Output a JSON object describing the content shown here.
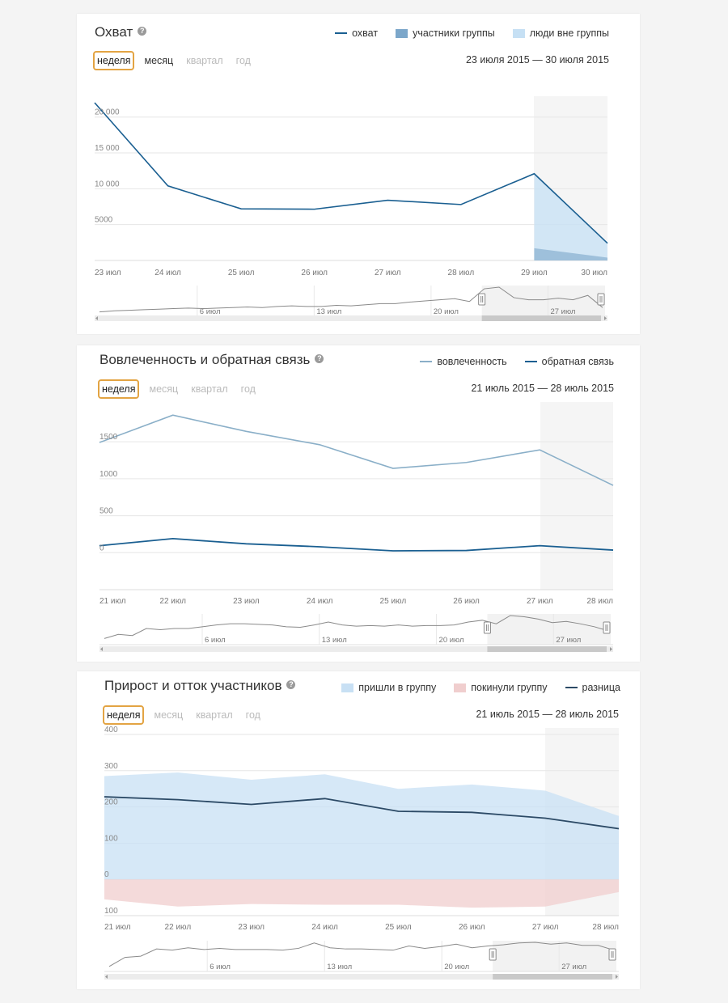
{
  "colors": {
    "reach": "#1a5f91",
    "members": "#7ca7ca",
    "nonmembers": "#c6e0f4",
    "engagement": "#8aafc8",
    "feedback": "#1a5f91",
    "joined": "#c8e0f4",
    "left": "#f0cece",
    "diff": "#2c4a66",
    "selected_border": "#e3a443"
  },
  "chart_data": [
    {
      "type": "line",
      "title": "Охват",
      "help": "?",
      "legend": [
        {
          "label": "охват",
          "kind": "line",
          "color_key": "reach"
        },
        {
          "label": "участники группы",
          "kind": "square",
          "color_key": "members"
        },
        {
          "label": "люди вне группы",
          "kind": "square",
          "color_key": "nonmembers"
        }
      ],
      "periods": [
        {
          "label": "неделя",
          "state": "selected"
        },
        {
          "label": "месяц",
          "state": "enabled"
        },
        {
          "label": "квартал",
          "state": "disabled"
        },
        {
          "label": "год",
          "state": "disabled"
        }
      ],
      "date_range": "23 июля 2015 — 30 июля 2015",
      "categories": [
        "23 июл",
        "24 июл",
        "25 июл",
        "26 июл",
        "27 июл",
        "28 июл",
        "29 июл",
        "30 июл"
      ],
      "series": [
        {
          "name": "охват",
          "values": [
            22000,
            10400,
            7200,
            7150,
            8400,
            7800,
            12100,
            2400
          ]
        }
      ],
      "partial_members": [
        1700,
        400
      ],
      "yticks": [
        5000,
        10000,
        15000,
        20000
      ],
      "ytick_labels": [
        "5000",
        "10 000",
        "15 000",
        "20 000"
      ],
      "ylim": [
        0,
        22000
      ],
      "navigator": {
        "labels": [
          "6 июл",
          "13 июл",
          "20 июл",
          "27 июл"
        ],
        "values": [
          2,
          4,
          5,
          6,
          7,
          8,
          9,
          8,
          9,
          10,
          11,
          10,
          12,
          13,
          12,
          12,
          14,
          13,
          15,
          17,
          17,
          20,
          22,
          24,
          26,
          21,
          44,
          47,
          28,
          24,
          24,
          27,
          24,
          32,
          10
        ]
      }
    },
    {
      "type": "line",
      "title": "Вовлеченность и обратная связь",
      "help": "?",
      "legend": [
        {
          "label": "вовлеченность",
          "kind": "line",
          "color_key": "engagement"
        },
        {
          "label": "обратная связь",
          "kind": "line",
          "color_key": "feedback"
        }
      ],
      "periods": [
        {
          "label": "неделя",
          "state": "selected"
        },
        {
          "label": "месяц",
          "state": "disabled"
        },
        {
          "label": "квартал",
          "state": "disabled"
        },
        {
          "label": "год",
          "state": "disabled"
        }
      ],
      "date_range": "21 июль 2015 — 28 июль 2015",
      "categories": [
        "21 июл",
        "22 июл",
        "23 июл",
        "24 июл",
        "25 июл",
        "26 июл",
        "27 июл",
        "28 июл"
      ],
      "series": [
        {
          "name": "вовлеченность",
          "values": [
            1490,
            1860,
            1640,
            1460,
            1140,
            1220,
            1390,
            910
          ]
        },
        {
          "name": "обратная связь",
          "values": [
            95,
            190,
            120,
            80,
            25,
            30,
            95,
            35
          ]
        }
      ],
      "yticks": [
        0,
        500,
        1000,
        1500
      ],
      "ytick_labels": [
        "0",
        "500",
        "1000",
        "1500"
      ],
      "ylim": [
        -500,
        1950
      ],
      "navigator": {
        "labels": [
          "6 июл",
          "13 июл",
          "20 июл",
          "27 июл"
        ],
        "values": [
          5,
          12,
          10,
          22,
          20,
          22,
          22,
          25,
          28,
          30,
          30,
          29,
          28,
          25,
          24,
          28,
          33,
          28,
          26,
          27,
          26,
          28,
          26,
          27,
          27,
          28,
          33,
          36,
          30,
          44,
          42,
          38,
          32,
          34,
          30,
          25,
          18
        ]
      }
    },
    {
      "type": "area",
      "title": "Прирост и отток участников",
      "help": "?",
      "legend": [
        {
          "label": "пришли в группу",
          "kind": "square",
          "color_key": "joined"
        },
        {
          "label": "покинули группу",
          "kind": "square",
          "color_key": "left"
        },
        {
          "label": "разница",
          "kind": "line",
          "color_key": "diff"
        }
      ],
      "periods": [
        {
          "label": "неделя",
          "state": "selected"
        },
        {
          "label": "месяц",
          "state": "disabled"
        },
        {
          "label": "квартал",
          "state": "disabled"
        },
        {
          "label": "год",
          "state": "disabled"
        }
      ],
      "date_range": "21 июль 2015 — 28 июль 2015",
      "categories": [
        "21 июл",
        "22 июл",
        "23 июл",
        "24 июл",
        "25 июл",
        "26 июл",
        "27 июл",
        "28 июл"
      ],
      "series": [
        {
          "name": "пришли в группу",
          "values": [
            285,
            295,
            275,
            290,
            250,
            262,
            245,
            175
          ]
        },
        {
          "name": "покинули группу",
          "values": [
            -55,
            -75,
            -68,
            -70,
            -70,
            -78,
            -75,
            -35
          ]
        },
        {
          "name": "разница",
          "values": [
            228,
            220,
            207,
            223,
            188,
            185,
            169,
            140
          ]
        }
      ],
      "yticks": [
        -100,
        0,
        100,
        200,
        300,
        400
      ],
      "ytick_labels": [
        "100",
        "0",
        "100",
        "200",
        "300",
        "400"
      ],
      "ylim": [
        -100,
        400
      ],
      "navigator": {
        "labels": [
          "6 июл",
          "13 июл",
          "20 июл",
          "27 июл"
        ],
        "values": [
          3,
          18,
          20,
          32,
          30,
          34,
          31,
          33,
          31,
          31,
          31,
          30,
          33,
          42,
          34,
          32,
          32,
          31,
          30,
          37,
          33,
          36,
          40,
          34,
          37,
          39,
          42,
          43,
          40,
          42,
          38,
          38,
          30
        ]
      }
    }
  ]
}
